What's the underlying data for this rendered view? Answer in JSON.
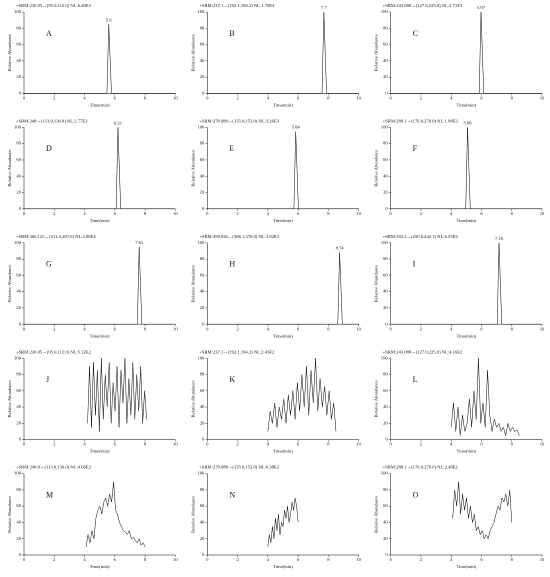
{
  "chart_data": [
    {
      "type": "line",
      "title": "+SRM:230.05→(95.0,112.0) NL:6.40E3",
      "label": "A",
      "xlabel": "Time(min)",
      "ylabel": "Relative Abundance",
      "peak_time": 5.6,
      "color": "#000000",
      "x": [
        0,
        5.48,
        5.6,
        5.78,
        10
      ],
      "values": [
        0,
        0,
        85,
        0,
        0
      ],
      "xlim": [
        0,
        10
      ],
      "ylim": [
        0,
        100
      ],
      "xticks": [
        0,
        2,
        4,
        6,
        8,
        10
      ],
      "yticks": [
        0,
        20,
        40,
        60,
        80,
        100
      ]
    },
    {
      "type": "line",
      "title": "+SRM:237.1→(192.1,194.2) NL:1.70E4",
      "label": "B",
      "xlabel": "Time(min)",
      "ylabel": "Relative Abundance",
      "peak_time": 7.7,
      "color": "#000000",
      "x": [
        0,
        7.58,
        7.7,
        7.88,
        10
      ],
      "values": [
        0,
        0,
        100,
        0,
        0
      ],
      "xlim": [
        0,
        10
      ],
      "ylim": [
        0,
        100
      ],
      "xticks": [
        0,
        2,
        4,
        6,
        8,
        10
      ],
      "yticks": [
        0,
        20,
        40,
        60,
        80,
        100
      ]
    },
    {
      "type": "line",
      "title": "+SRM:243.088→(127.0,225.0) NL:2.71E3",
      "label": "C",
      "xlabel": "Time(min)",
      "ylabel": "Relative Abundance",
      "peak_time": 5.97,
      "color": "#000000",
      "x": [
        0,
        5.85,
        5.97,
        6.15,
        10
      ],
      "values": [
        0,
        0,
        100,
        0,
        0
      ],
      "xlim": [
        0,
        10
      ],
      "ylim": [
        0,
        100
      ],
      "xticks": [
        0,
        2,
        4,
        6,
        8,
        10
      ],
      "yticks": [
        0,
        20,
        40,
        60,
        80,
        100
      ]
    },
    {
      "type": "line",
      "title": "+SRM:248→(113.0,130.0) NL:2.77E3",
      "label": "D",
      "xlabel": "Time(min)",
      "ylabel": "Relative Abundance",
      "peak_time": 6.21,
      "color": "#000000",
      "x": [
        0,
        6.09,
        6.21,
        6.39,
        10
      ],
      "values": [
        0,
        0,
        100,
        0,
        0
      ],
      "xlim": [
        0,
        10
      ],
      "ylim": [
        0,
        100
      ],
      "xticks": [
        0,
        2,
        4,
        6,
        8,
        10
      ],
      "yticks": [
        0,
        20,
        40,
        60,
        80,
        100
      ]
    },
    {
      "type": "line",
      "title": "+SRM:278.088→(135.0,152.0) NL:3.26E3",
      "label": "E",
      "xlabel": "Time(min)",
      "ylabel": "Relative Abundance",
      "peak_time": 5.84,
      "color": "#000000",
      "x": [
        0,
        5.72,
        5.84,
        6.02,
        10
      ],
      "values": [
        0,
        0,
        95,
        0,
        0
      ],
      "xlim": [
        0,
        10
      ],
      "ylim": [
        0,
        100
      ],
      "xticks": [
        0,
        2,
        4,
        6,
        8,
        10
      ],
      "yticks": [
        0,
        20,
        40,
        60,
        80,
        100
      ]
    },
    {
      "type": "line",
      "title": "+SRM:288.1→(176.0,270.0) NL:1.98E3",
      "label": "F",
      "xlabel": "Time(min)",
      "ylabel": "Relative Abundance",
      "peak_time": 5.08,
      "color": "#000000",
      "x": [
        0,
        4.96,
        5.08,
        5.26,
        10
      ],
      "values": [
        0,
        0,
        100,
        0,
        0
      ],
      "xlim": [
        0,
        10
      ],
      "ylim": [
        0,
        100
      ],
      "xticks": [
        0,
        2,
        4,
        6,
        8,
        10
      ],
      "yticks": [
        0,
        20,
        40,
        60,
        80,
        100
      ]
    },
    {
      "type": "line",
      "title": "+SRM:366.125→(212.3,287.0) NL:2.86E4",
      "label": "G",
      "xlabel": "Time(min)",
      "ylabel": "Relative Abundance",
      "peak_time": 7.61,
      "color": "#000000",
      "x": [
        0,
        7.49,
        7.61,
        7.79,
        10
      ],
      "values": [
        0,
        0,
        95,
        0,
        0
      ],
      "xlim": [
        0,
        10
      ],
      "ylim": [
        0,
        100
      ],
      "xticks": [
        0,
        2,
        4,
        6,
        8,
        10
      ],
      "yticks": [
        0,
        20,
        40,
        60,
        80,
        100
      ]
    },
    {
      "type": "line",
      "title": "+SRM:398.036→(366.1,376.0) NL:3.92E3",
      "label": "H",
      "xlabel": "Time(min)",
      "ylabel": "Relative Abundance",
      "peak_time": 8.74,
      "color": "#000000",
      "x": [
        0,
        8.62,
        8.74,
        8.92,
        10
      ],
      "values": [
        0,
        0,
        88,
        0,
        0
      ],
      "xlim": [
        0,
        10
      ],
      "ylim": [
        0,
        100
      ],
      "xticks": [
        0,
        2,
        4,
        6,
        8,
        10
      ],
      "yticks": [
        0,
        20,
        40,
        60,
        80,
        100
      ]
    },
    {
      "type": "line",
      "title": "+SRM:392.2→(250.6,442.1) NL:6.55E4",
      "label": "I",
      "xlabel": "Time(min)",
      "ylabel": "Relative Abundance",
      "peak_time": 7.16,
      "color": "#000000",
      "x": [
        0,
        7.04,
        7.16,
        7.34,
        10
      ],
      "values": [
        0,
        0,
        100,
        0,
        0
      ],
      "xlim": [
        0,
        10
      ],
      "ylim": [
        0,
        100
      ],
      "xticks": [
        0,
        2,
        4,
        6,
        8,
        10
      ],
      "yticks": [
        0,
        20,
        40,
        60,
        80,
        100
      ]
    },
    {
      "type": "line",
      "title": "+SRM:230.05→(95.0,112.0) NL:5.32E2",
      "label": "J",
      "xlabel": "Time(min)",
      "ylabel": "Relative Abundance",
      "color": "#000000",
      "x": [
        4.2,
        4.33,
        4.46,
        4.59,
        4.72,
        4.85,
        4.98,
        5.11,
        5.24,
        5.37,
        5.5,
        5.63,
        5.76,
        5.89,
        6.02,
        6.15,
        6.28,
        6.41,
        6.54,
        6.67,
        6.8,
        6.93,
        7.06,
        7.19,
        7.32,
        7.45,
        7.58,
        7.71,
        7.84,
        7.97,
        8.1
      ],
      "values": [
        20,
        90,
        15,
        95,
        30,
        85,
        10,
        100,
        25,
        80,
        40,
        95,
        20,
        70,
        35,
        90,
        15,
        85,
        45,
        100,
        20,
        75,
        30,
        95,
        25,
        80,
        35,
        90,
        20,
        60,
        25
      ],
      "xlim": [
        0,
        10
      ],
      "ylim": [
        0,
        100
      ],
      "xticks": [
        0,
        2,
        4,
        6,
        8,
        10
      ],
      "yticks": [
        0,
        20,
        40,
        60,
        80,
        100
      ]
    },
    {
      "type": "line",
      "title": "+SRM:237.1→(192.1,194.2) NL:2.43E2",
      "label": "K",
      "xlabel": "Time(min)",
      "ylabel": "Relative Abundance",
      "color": "#000000",
      "x": [
        4.0,
        4.15,
        4.3,
        4.45,
        4.6,
        4.75,
        4.9,
        5.05,
        5.2,
        5.35,
        5.5,
        5.65,
        5.8,
        5.95,
        6.1,
        6.25,
        6.4,
        6.55,
        6.7,
        6.85,
        7.0,
        7.15,
        7.3,
        7.45,
        7.6,
        7.75,
        7.9,
        8.05,
        8.2,
        8.35,
        8.5
      ],
      "values": [
        10,
        35,
        20,
        45,
        15,
        40,
        25,
        50,
        20,
        55,
        30,
        60,
        25,
        70,
        35,
        80,
        40,
        90,
        30,
        85,
        45,
        100,
        35,
        75,
        40,
        65,
        30,
        60,
        25,
        45,
        10
      ],
      "xlim": [
        0,
        10
      ],
      "ylim": [
        0,
        100
      ],
      "xticks": [
        0,
        2,
        4,
        6,
        8,
        10
      ],
      "yticks": [
        0,
        20,
        40,
        60,
        80,
        100
      ]
    },
    {
      "type": "line",
      "title": "+SRM:243.088→(127.0,225.0) NL:4.16E2",
      "label": "L",
      "xlabel": "Time(min)",
      "ylabel": "Relative Abundance",
      "color": "#000000",
      "x": [
        4.0,
        4.15,
        4.3,
        4.45,
        4.6,
        4.75,
        4.9,
        5.05,
        5.2,
        5.35,
        5.5,
        5.65,
        5.8,
        5.95,
        6.1,
        6.25,
        6.4,
        6.55,
        6.7,
        6.85,
        7.0,
        7.15,
        7.3,
        7.45,
        7.6,
        7.75,
        7.9,
        8.05,
        8.2,
        8.35,
        8.5
      ],
      "values": [
        15,
        45,
        10,
        40,
        5,
        30,
        10,
        20,
        50,
        15,
        60,
        25,
        100,
        20,
        45,
        15,
        85,
        30,
        10,
        25,
        15,
        20,
        10,
        15,
        5,
        20,
        10,
        15,
        10,
        12,
        5
      ],
      "xlim": [
        0,
        10
      ],
      "ylim": [
        0,
        100
      ],
      "xticks": [
        0,
        2,
        4,
        6,
        8,
        10
      ],
      "yticks": [
        0,
        20,
        40,
        60,
        80,
        100
      ]
    },
    {
      "type": "line",
      "title": "+SRM:248.0→(113.0,130.0) NL:4.68E2",
      "label": "M",
      "xlabel": "Time(min)",
      "ylabel": "Relative Abundance",
      "color": "#000000",
      "x": [
        4.1,
        4.23,
        4.36,
        4.49,
        4.62,
        4.75,
        4.88,
        5.01,
        5.14,
        5.27,
        5.4,
        5.53,
        5.66,
        5.79,
        5.92,
        6.05,
        6.18,
        6.31,
        6.44,
        6.57,
        6.7,
        6.83,
        6.96,
        7.09,
        7.22,
        7.35,
        7.48,
        7.61,
        7.74,
        7.87,
        8.0
      ],
      "values": [
        10,
        25,
        15,
        30,
        20,
        45,
        55,
        60,
        50,
        65,
        70,
        60,
        75,
        65,
        90,
        55,
        50,
        40,
        35,
        30,
        28,
        25,
        30,
        20,
        22,
        18,
        15,
        20,
        12,
        15,
        10
      ],
      "xlim": [
        0,
        10
      ],
      "ylim": [
        0,
        100
      ],
      "xticks": [
        0,
        2,
        4,
        6,
        8,
        10
      ],
      "yticks": [
        0,
        20,
        40,
        60,
        80,
        100
      ]
    },
    {
      "type": "line",
      "title": "+SRM:278.088→(135.0,152.0) NL:6.38E2",
      "label": "N",
      "xlabel": "Time(min)",
      "ylabel": "Relative Abundance",
      "color": "#000000",
      "x": [
        4.0,
        4.1,
        4.2,
        4.3,
        4.4,
        4.5,
        4.6,
        4.7,
        4.8,
        4.9,
        5.0,
        5.1,
        5.2,
        5.3,
        5.4,
        5.5,
        5.6,
        5.7,
        5.8,
        5.9,
        6.0
      ],
      "values": [
        10,
        25,
        15,
        35,
        20,
        45,
        30,
        50,
        25,
        40,
        35,
        55,
        45,
        60,
        40,
        50,
        65,
        55,
        70,
        60,
        40
      ],
      "xlim": [
        0,
        10
      ],
      "ylim": [
        0,
        100
      ],
      "xticks": [
        0,
        2,
        4,
        6,
        8,
        10
      ],
      "yticks": [
        0,
        20,
        40,
        60,
        80,
        100
      ]
    },
    {
      "type": "line",
      "title": "+SRM:288.1→(176.0,270.0) NL:2.48E2",
      "label": "O",
      "xlabel": "Time(min)",
      "ylabel": "Relative Abundance",
      "color": "#000000",
      "x": [
        4.1,
        4.23,
        4.36,
        4.49,
        4.62,
        4.75,
        4.88,
        5.01,
        5.14,
        5.27,
        5.4,
        5.53,
        5.66,
        5.79,
        5.92,
        6.05,
        6.18,
        6.31,
        6.44,
        6.57,
        6.7,
        6.83,
        6.96,
        7.09,
        7.22,
        7.35,
        7.48,
        7.61,
        7.74,
        7.87,
        8.0
      ],
      "values": [
        45,
        80,
        60,
        90,
        50,
        75,
        55,
        70,
        45,
        60,
        40,
        50,
        30,
        35,
        25,
        30,
        20,
        25,
        20,
        30,
        35,
        40,
        50,
        60,
        55,
        70,
        65,
        75,
        60,
        80,
        40
      ],
      "xlim": [
        0,
        10
      ],
      "ylim": [
        0,
        100
      ],
      "xticks": [
        0,
        2,
        4,
        6,
        8,
        10
      ],
      "yticks": [
        0,
        20,
        40,
        60,
        80,
        100
      ]
    }
  ]
}
